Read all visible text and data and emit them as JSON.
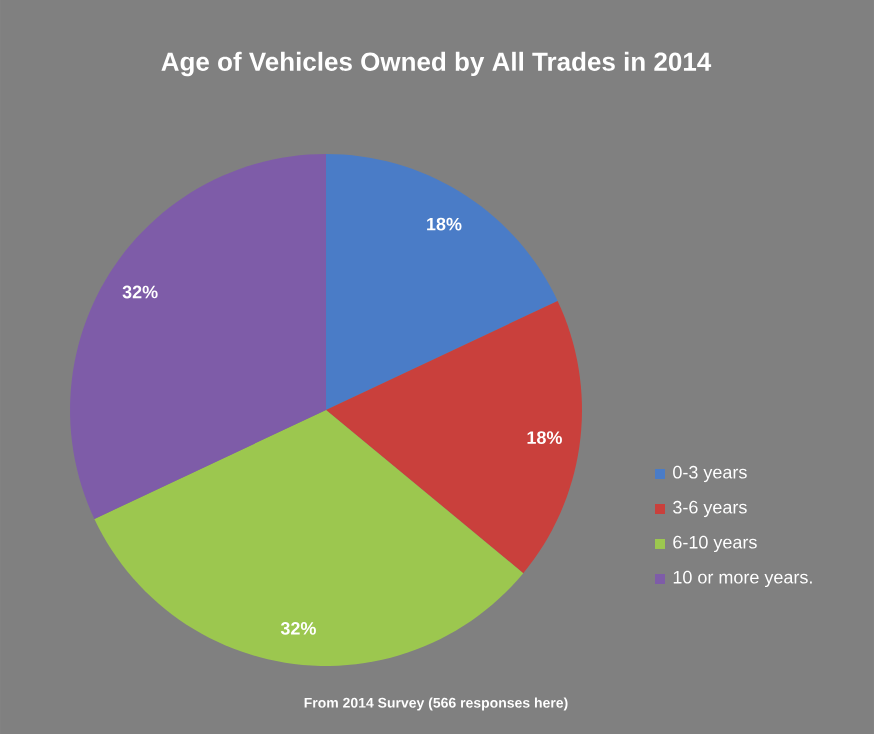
{
  "chart_data": {
    "type": "pie",
    "title": "Age of Vehicles Owned by All Trades in 2014",
    "categories": [
      "0-3 years",
      "3-6 years",
      "6-10 years",
      "10 or more years."
    ],
    "values": [
      18,
      18,
      32,
      32
    ],
    "value_labels": [
      "18%",
      "18%",
      "32%",
      "32%"
    ],
    "colors": [
      "#4a7cc7",
      "#c9403c",
      "#9cc74f",
      "#7e5ca8"
    ],
    "legend": "right",
    "annotations": [
      "From 2014 Survey (566 responses here)"
    ]
  }
}
